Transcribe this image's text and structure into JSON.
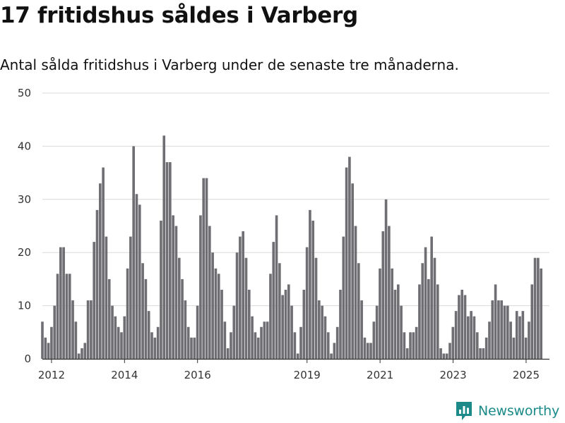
{
  "header": {
    "title": "17 fritidshus såldes i Varberg",
    "subtitle": "Antal sålda fritidshus i Varberg under de senaste tre månaderna."
  },
  "chart_data": {
    "type": "bar",
    "title": "17 fritidshus såldes i Varberg",
    "subtitle": "Antal sålda fritidshus i Varberg under de senaste tre månaderna.",
    "xlabel": "",
    "ylabel": "",
    "ylim": [
      0,
      50
    ],
    "yticks": [
      0,
      10,
      20,
      30,
      40,
      50
    ],
    "xlim": [
      2011.75,
      2025.64
    ],
    "xticks": [
      "2012",
      "2014",
      "2016",
      "2019",
      "2021",
      "2023",
      "2025"
    ],
    "xtick_values": [
      2012,
      2014,
      2016,
      2019,
      2021,
      2023,
      2025
    ],
    "period": "rolling 3-month sum, monthly",
    "x_start": 2011.75,
    "x_step": 0.0833,
    "values": [
      7,
      4,
      3,
      6,
      10,
      16,
      21,
      21,
      16,
      16,
      11,
      7,
      1,
      2,
      3,
      11,
      11,
      22,
      28,
      33,
      36,
      23,
      15,
      10,
      8,
      6,
      5,
      8,
      17,
      23,
      40,
      31,
      29,
      18,
      15,
      9,
      5,
      4,
      6,
      26,
      42,
      37,
      37,
      27,
      25,
      19,
      15,
      11,
      6,
      4,
      4,
      10,
      27,
      34,
      34,
      25,
      20,
      17,
      16,
      13,
      7,
      2,
      5,
      10,
      20,
      23,
      24,
      19,
      13,
      8,
      5,
      4,
      6,
      7,
      7,
      16,
      22,
      27,
      18,
      12,
      13,
      14,
      10,
      5,
      1,
      6,
      13,
      21,
      28,
      26,
      19,
      11,
      10,
      8,
      5,
      1,
      3,
      6,
      13,
      23,
      36,
      38,
      33,
      25,
      18,
      11,
      4,
      3,
      3,
      7,
      10,
      17,
      24,
      30,
      25,
      17,
      13,
      14,
      10,
      5,
      2,
      5,
      5,
      6,
      14,
      18,
      21,
      15,
      23,
      19,
      14,
      2,
      1,
      1,
      3,
      6,
      9,
      12,
      13,
      12,
      8,
      9,
      8,
      5,
      2,
      2,
      4,
      7,
      11,
      14,
      11,
      11,
      10,
      10,
      7,
      4,
      9,
      8,
      9,
      4,
      7,
      14,
      19,
      19,
      17
    ],
    "highlight": {
      "index": 165,
      "value": 17,
      "label": "17",
      "color": "#1c9a97"
    },
    "bar_color": "#6f6e73",
    "grid": true,
    "legend": "none"
  },
  "brand": {
    "name": "Newsworthy",
    "icon": "newsworthy-logo-icon",
    "color": "#1b8a88"
  }
}
